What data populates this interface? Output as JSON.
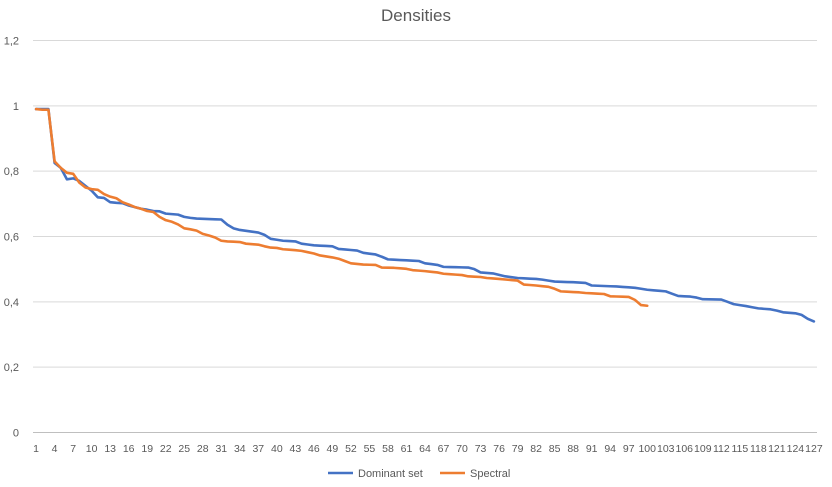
{
  "chart_data": {
    "type": "line",
    "title": "Densities",
    "xlabel": "",
    "ylabel": "",
    "ylim": [
      0,
      1.2
    ],
    "y_ticks": [
      "0",
      "0,2",
      "0,4",
      "0,6",
      "0,8",
      "1",
      "1,2"
    ],
    "x_tick_values": [
      1,
      4,
      7,
      10,
      13,
      16,
      19,
      22,
      25,
      28,
      31,
      34,
      37,
      40,
      43,
      46,
      49,
      52,
      55,
      58,
      61,
      64,
      67,
      70,
      73,
      76,
      79,
      82,
      85,
      88,
      91,
      94,
      97,
      100,
      103,
      106,
      109,
      112,
      115,
      118,
      121,
      124,
      127
    ],
    "x_max": 127,
    "legend_position": "bottom",
    "series": [
      {
        "name": "Dominant set",
        "color": "#4472c4",
        "control_points": [
          [
            1,
            0.99
          ],
          [
            2,
            0.99
          ],
          [
            3,
            0.99
          ],
          [
            4,
            0.825
          ],
          [
            5,
            0.81
          ],
          [
            6,
            0.775
          ],
          [
            7,
            0.778
          ],
          [
            8,
            0.77
          ],
          [
            9,
            0.755
          ],
          [
            10,
            0.74
          ],
          [
            11,
            0.72
          ],
          [
            12,
            0.718
          ],
          [
            13,
            0.705
          ],
          [
            14,
            0.703
          ],
          [
            15,
            0.702
          ],
          [
            16,
            0.695
          ],
          [
            17,
            0.69
          ],
          [
            18,
            0.685
          ],
          [
            19,
            0.682
          ],
          [
            20,
            0.678
          ],
          [
            21,
            0.677
          ],
          [
            22,
            0.67
          ],
          [
            24,
            0.667
          ],
          [
            25,
            0.66
          ],
          [
            26,
            0.657
          ],
          [
            27,
            0.655
          ],
          [
            31,
            0.652
          ],
          [
            32,
            0.636
          ],
          [
            33,
            0.625
          ],
          [
            34,
            0.62
          ],
          [
            37,
            0.612
          ],
          [
            38,
            0.605
          ],
          [
            39,
            0.593
          ],
          [
            41,
            0.587
          ],
          [
            43,
            0.585
          ],
          [
            44,
            0.578
          ],
          [
            46,
            0.573
          ],
          [
            49,
            0.57
          ],
          [
            50,
            0.562
          ],
          [
            53,
            0.557
          ],
          [
            54,
            0.55
          ],
          [
            56,
            0.545
          ],
          [
            57,
            0.538
          ],
          [
            58,
            0.53
          ],
          [
            60,
            0.528
          ],
          [
            63,
            0.525
          ],
          [
            64,
            0.518
          ],
          [
            66,
            0.513
          ],
          [
            67,
            0.507
          ],
          [
            71,
            0.505
          ],
          [
            72,
            0.5
          ],
          [
            73,
            0.49
          ],
          [
            75,
            0.487
          ],
          [
            77,
            0.478
          ],
          [
            79,
            0.473
          ],
          [
            82,
            0.47
          ],
          [
            83,
            0.468
          ],
          [
            85,
            0.462
          ],
          [
            88,
            0.46
          ],
          [
            90,
            0.458
          ],
          [
            91,
            0.45
          ],
          [
            95,
            0.447
          ],
          [
            98,
            0.443
          ],
          [
            100,
            0.437
          ],
          [
            103,
            0.432
          ],
          [
            104,
            0.425
          ],
          [
            105,
            0.418
          ],
          [
            107,
            0.416
          ],
          [
            108,
            0.413
          ],
          [
            109,
            0.408
          ],
          [
            112,
            0.407
          ],
          [
            113,
            0.4
          ],
          [
            114,
            0.393
          ],
          [
            116,
            0.387
          ],
          [
            118,
            0.38
          ],
          [
            120,
            0.377
          ],
          [
            121,
            0.373
          ],
          [
            122,
            0.368
          ],
          [
            124,
            0.365
          ],
          [
            125,
            0.36
          ],
          [
            126,
            0.348
          ],
          [
            127,
            0.34
          ]
        ]
      },
      {
        "name": "Spectral",
        "color": "#ed7d31",
        "control_points": [
          [
            1,
            0.99
          ],
          [
            2,
            0.988
          ],
          [
            3,
            0.988
          ],
          [
            4,
            0.83
          ],
          [
            5,
            0.81
          ],
          [
            6,
            0.795
          ],
          [
            7,
            0.792
          ],
          [
            8,
            0.765
          ],
          [
            9,
            0.75
          ],
          [
            10,
            0.745
          ],
          [
            11,
            0.743
          ],
          [
            12,
            0.73
          ],
          [
            13,
            0.722
          ],
          [
            14,
            0.717
          ],
          [
            15,
            0.705
          ],
          [
            16,
            0.698
          ],
          [
            17,
            0.69
          ],
          [
            18,
            0.685
          ],
          [
            19,
            0.678
          ],
          [
            20,
            0.675
          ],
          [
            21,
            0.66
          ],
          [
            22,
            0.65
          ],
          [
            23,
            0.645
          ],
          [
            24,
            0.637
          ],
          [
            25,
            0.625
          ],
          [
            26,
            0.622
          ],
          [
            27,
            0.618
          ],
          [
            28,
            0.608
          ],
          [
            29,
            0.603
          ],
          [
            30,
            0.597
          ],
          [
            31,
            0.587
          ],
          [
            32,
            0.585
          ],
          [
            34,
            0.583
          ],
          [
            35,
            0.578
          ],
          [
            37,
            0.575
          ],
          [
            38,
            0.57
          ],
          [
            39,
            0.566
          ],
          [
            40,
            0.565
          ],
          [
            41,
            0.561
          ],
          [
            43,
            0.558
          ],
          [
            44,
            0.556
          ],
          [
            45,
            0.552
          ],
          [
            46,
            0.548
          ],
          [
            47,
            0.542
          ],
          [
            49,
            0.536
          ],
          [
            50,
            0.532
          ],
          [
            51,
            0.525
          ],
          [
            52,
            0.518
          ],
          [
            54,
            0.514
          ],
          [
            56,
            0.513
          ],
          [
            57,
            0.505
          ],
          [
            59,
            0.504
          ],
          [
            61,
            0.501
          ],
          [
            62,
            0.497
          ],
          [
            64,
            0.494
          ],
          [
            66,
            0.49
          ],
          [
            67,
            0.486
          ],
          [
            70,
            0.482
          ],
          [
            71,
            0.478
          ],
          [
            73,
            0.476
          ],
          [
            74,
            0.473
          ],
          [
            76,
            0.47
          ],
          [
            79,
            0.465
          ],
          [
            80,
            0.453
          ],
          [
            82,
            0.45
          ],
          [
            84,
            0.446
          ],
          [
            85,
            0.44
          ],
          [
            86,
            0.432
          ],
          [
            89,
            0.429
          ],
          [
            90,
            0.427
          ],
          [
            93,
            0.424
          ],
          [
            94,
            0.417
          ],
          [
            97,
            0.415
          ],
          [
            98,
            0.406
          ],
          [
            99,
            0.39
          ],
          [
            100,
            0.388
          ]
        ]
      }
    ]
  }
}
